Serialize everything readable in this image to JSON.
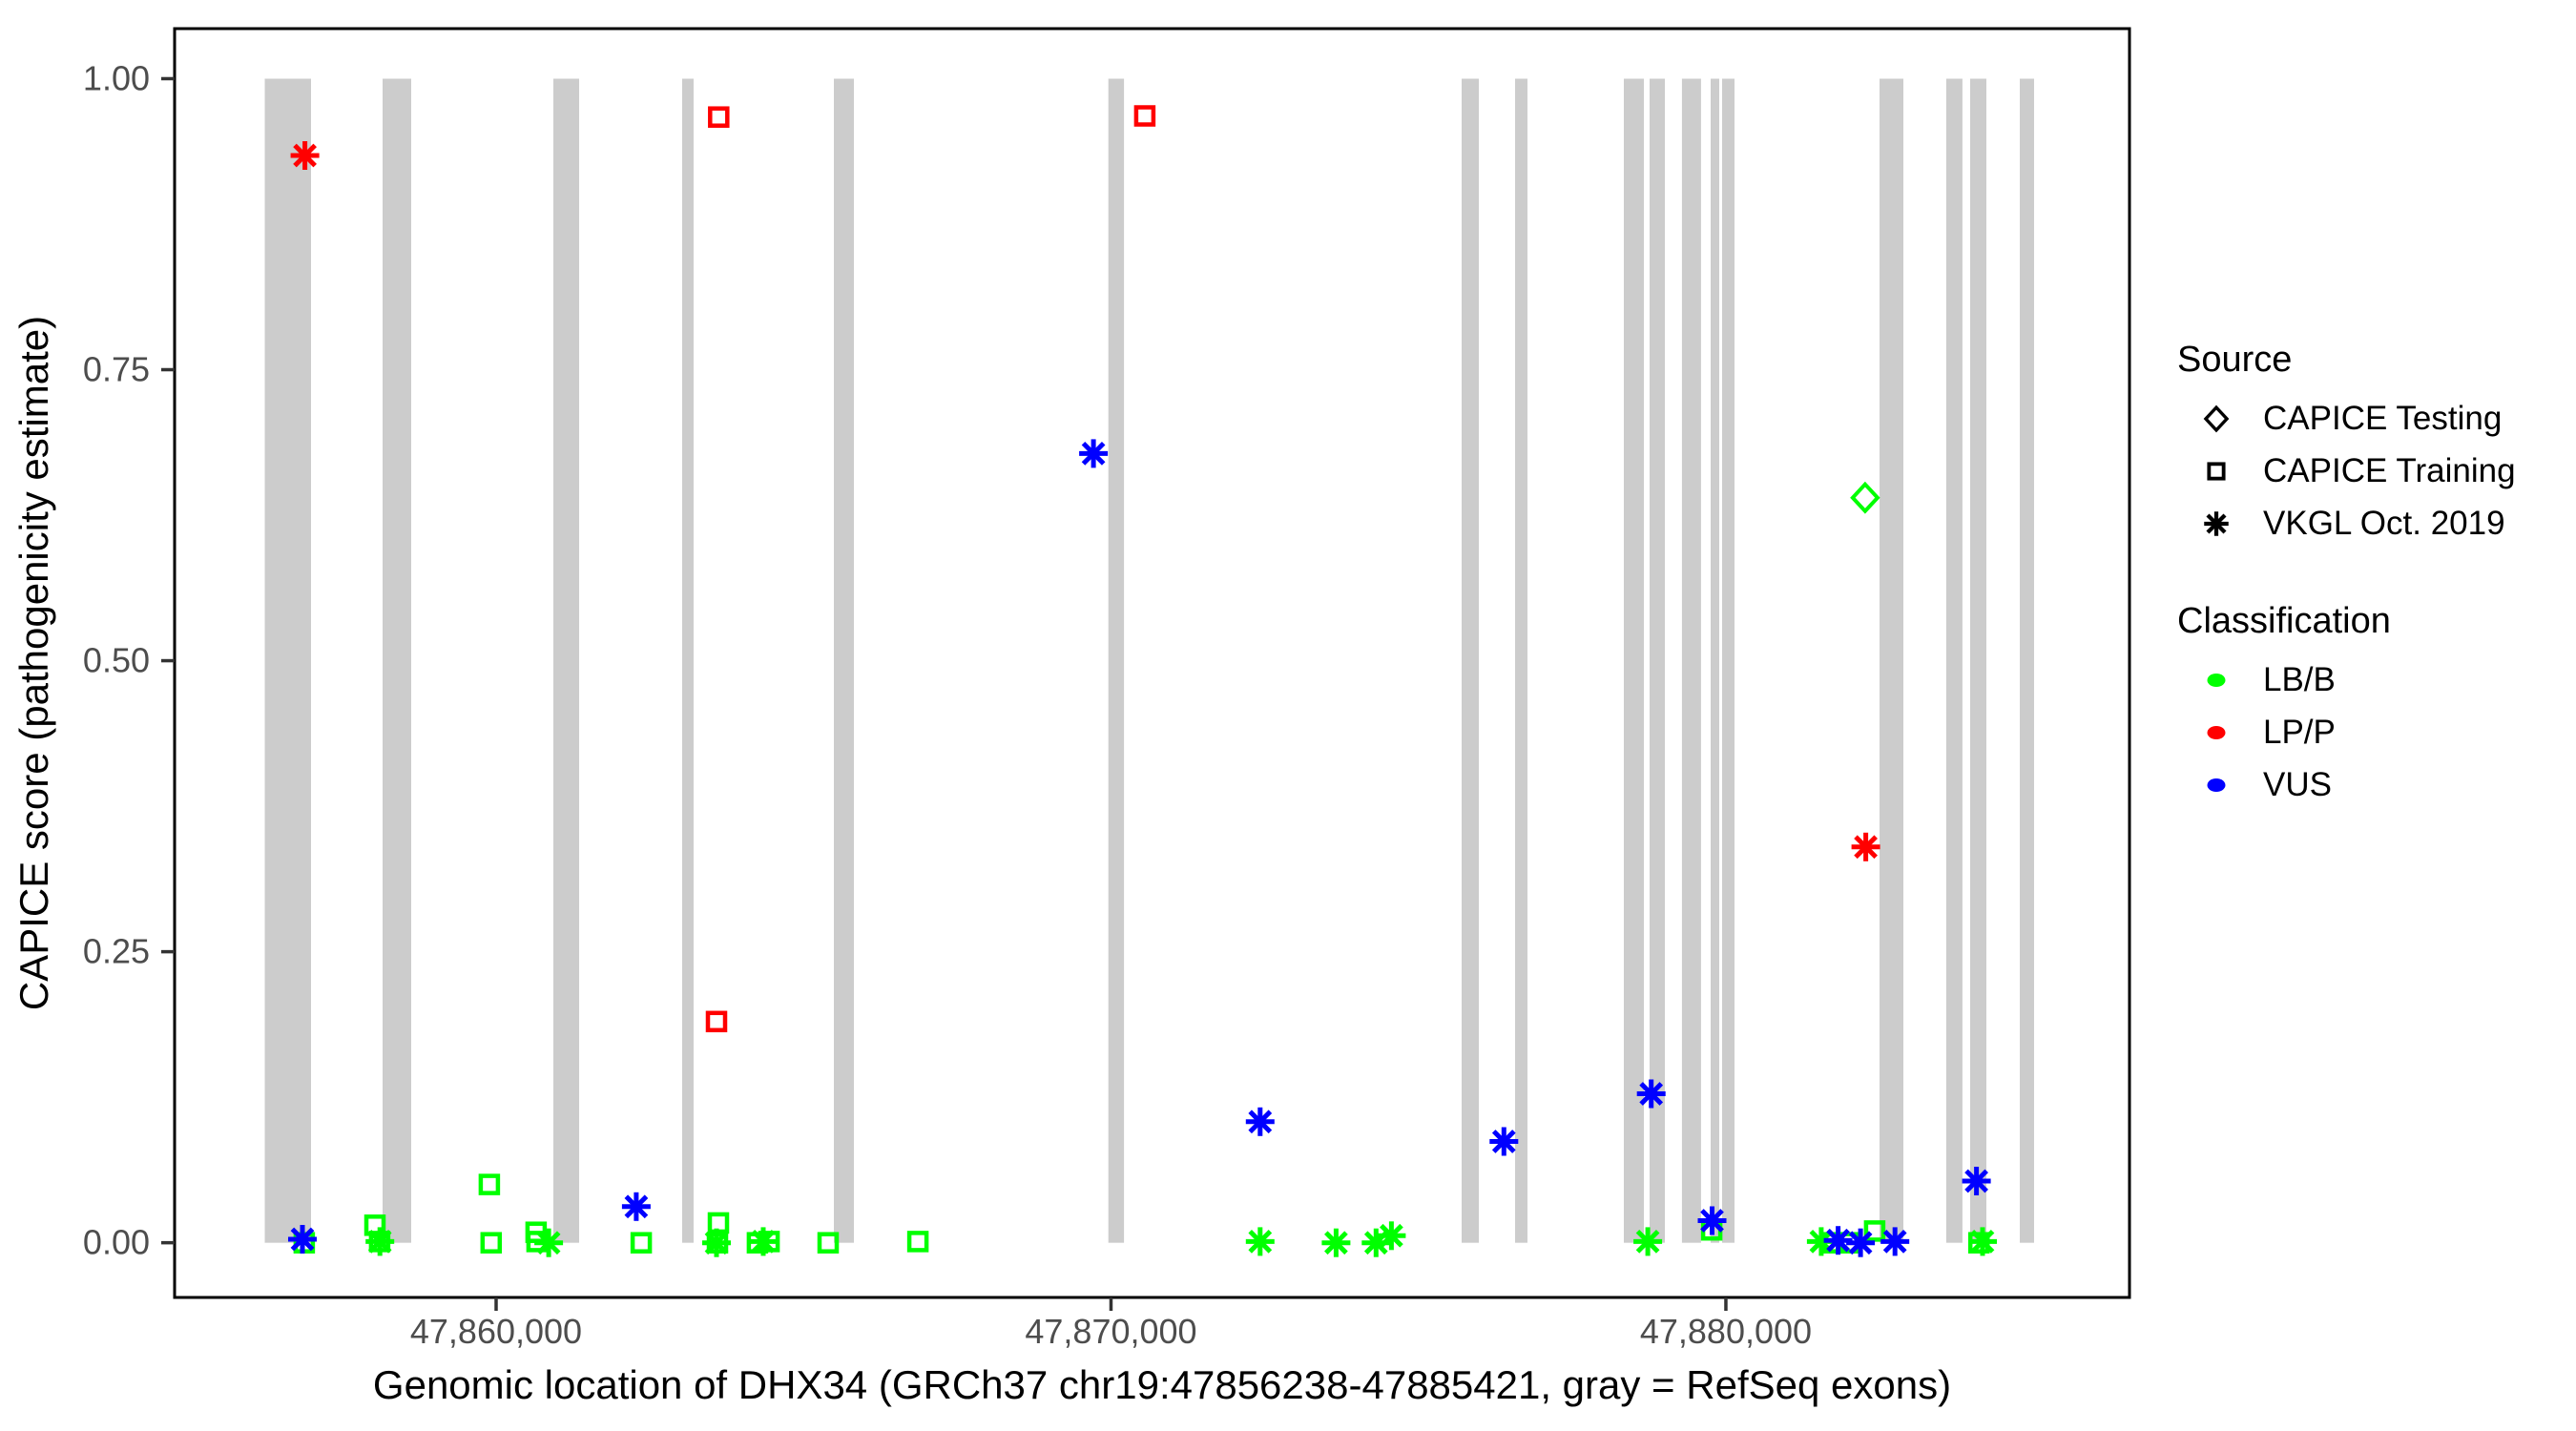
{
  "chart_data": {
    "type": "scatter",
    "title": "",
    "xlabel": "Genomic location of DHX34 (GRCh37 chr19:47856238-47885421, gray = RefSeq exons)",
    "ylabel": "CAPICE score (pathogenicity estimate)",
    "xlim": [
      47854771,
      47886564
    ],
    "ylim": [
      -0.047,
      1.043
    ],
    "grid": false,
    "legend_position": "right",
    "gene_region": {
      "gene": "DHX34",
      "assembly": "GRCh37",
      "chromosome": "chr19",
      "start": 47856238,
      "end": 47885421,
      "exon_note": "gray = RefSeq exons"
    },
    "x_ticks": [
      {
        "value": 47860000,
        "label": "47,860,000"
      },
      {
        "value": 47870000,
        "label": "47,870,000"
      },
      {
        "value": 47880000,
        "label": "47,880,000"
      }
    ],
    "y_ticks": [
      {
        "value": 0.0,
        "label": "0.00"
      },
      {
        "value": 0.25,
        "label": "0.25"
      },
      {
        "value": 0.5,
        "label": "0.50"
      },
      {
        "value": 0.75,
        "label": "0.75"
      },
      {
        "value": 1.0,
        "label": "1.00"
      }
    ],
    "exons": [
      [
        47856238,
        47856990
      ],
      [
        47858154,
        47858619
      ],
      [
        47860931,
        47861350
      ],
      [
        47863026,
        47863212
      ],
      [
        47865493,
        47865819
      ],
      [
        47869957,
        47870211
      ],
      [
        47875702,
        47875981
      ],
      [
        47876571,
        47876773
      ],
      [
        47878340,
        47878666
      ],
      [
        47878759,
        47879007
      ],
      [
        47879286,
        47879597
      ],
      [
        47879752,
        47879891
      ],
      [
        47879938,
        47880139
      ],
      [
        47882498,
        47882886
      ],
      [
        47883584,
        47883848
      ],
      [
        47883972,
        47884236
      ],
      [
        47884779,
        47885012
      ]
    ],
    "classification_colors": {
      "LB/B": "#00FF00",
      "LP/P": "#FF0000",
      "VUS": "#0000FF"
    },
    "series": [
      {
        "name": "CAPICE Testing",
        "marker": "diamond",
        "points": [
          {
            "x": 47882265,
            "y": 0.64,
            "classification": "LB/B"
          }
        ]
      },
      {
        "name": "CAPICE Training",
        "marker": "square",
        "points": [
          {
            "x": 47856880,
            "y": 0.0,
            "classification": "LB/B"
          },
          {
            "x": 47858030,
            "y": 0.015,
            "classification": "LB/B"
          },
          {
            "x": 47858105,
            "y": 0.001,
            "classification": "LB/B"
          },
          {
            "x": 47859890,
            "y": 0.05,
            "classification": "LB/B"
          },
          {
            "x": 47859920,
            "y": 0.0,
            "classification": "LB/B"
          },
          {
            "x": 47860650,
            "y": 0.009,
            "classification": "LB/B"
          },
          {
            "x": 47860665,
            "y": 0.001,
            "classification": "LB/B"
          },
          {
            "x": 47862360,
            "y": 0.0,
            "classification": "LB/B"
          },
          {
            "x": 47863585,
            "y": 0.19,
            "classification": "LP/P"
          },
          {
            "x": 47863600,
            "y": 0.0,
            "classification": "LB/B"
          },
          {
            "x": 47863615,
            "y": 0.017,
            "classification": "LB/B"
          },
          {
            "x": 47863620,
            "y": 0.967,
            "classification": "LP/P"
          },
          {
            "x": 47864250,
            "y": 0.0,
            "classification": "LB/B"
          },
          {
            "x": 47864440,
            "y": 0.001,
            "classification": "LB/B"
          },
          {
            "x": 47865400,
            "y": 0.0,
            "classification": "LB/B"
          },
          {
            "x": 47866860,
            "y": 0.001,
            "classification": "LB/B"
          },
          {
            "x": 47870550,
            "y": 0.968,
            "classification": "LP/P"
          },
          {
            "x": 47879770,
            "y": 0.011,
            "classification": "LB/B"
          },
          {
            "x": 47881750,
            "y": 0.0,
            "classification": "LB/B"
          },
          {
            "x": 47881990,
            "y": 0.0,
            "classification": "LB/B"
          },
          {
            "x": 47882420,
            "y": 0.01,
            "classification": "LB/B"
          },
          {
            "x": 47884115,
            "y": 0.0,
            "classification": "LB/B"
          }
        ]
      },
      {
        "name": "VKGL Oct. 2019",
        "marker": "asterisk",
        "points": [
          {
            "x": 47856850,
            "y": 0.003,
            "classification": "VUS"
          },
          {
            "x": 47856890,
            "y": 0.934,
            "classification": "LP/P"
          },
          {
            "x": 47858110,
            "y": 0.001,
            "classification": "LB/B"
          },
          {
            "x": 47860855,
            "y": 0.0,
            "classification": "LB/B"
          },
          {
            "x": 47862280,
            "y": 0.031,
            "classification": "VUS"
          },
          {
            "x": 47863585,
            "y": 0.0,
            "classification": "LB/B"
          },
          {
            "x": 47864345,
            "y": 0.001,
            "classification": "LB/B"
          },
          {
            "x": 47869715,
            "y": 0.678,
            "classification": "VUS"
          },
          {
            "x": 47872425,
            "y": 0.104,
            "classification": "VUS"
          },
          {
            "x": 47872425,
            "y": 0.001,
            "classification": "LB/B"
          },
          {
            "x": 47873660,
            "y": 0.0,
            "classification": "LB/B"
          },
          {
            "x": 47874310,
            "y": 0.0,
            "classification": "LB/B"
          },
          {
            "x": 47874560,
            "y": 0.006,
            "classification": "LB/B"
          },
          {
            "x": 47876390,
            "y": 0.087,
            "classification": "VUS"
          },
          {
            "x": 47878730,
            "y": 0.001,
            "classification": "LB/B"
          },
          {
            "x": 47878785,
            "y": 0.128,
            "classification": "VUS"
          },
          {
            "x": 47879775,
            "y": 0.019,
            "classification": "VUS"
          },
          {
            "x": 47881550,
            "y": 0.001,
            "classification": "LB/B"
          },
          {
            "x": 47881825,
            "y": 0.002,
            "classification": "VUS"
          },
          {
            "x": 47882190,
            "y": 0.0,
            "classification": "VUS"
          },
          {
            "x": 47882275,
            "y": 0.34,
            "classification": "LP/P"
          },
          {
            "x": 47882750,
            "y": 0.001,
            "classification": "VUS"
          },
          {
            "x": 47884075,
            "y": 0.053,
            "classification": "VUS"
          },
          {
            "x": 47884175,
            "y": 0.001,
            "classification": "LB/B"
          }
        ]
      }
    ]
  },
  "legend": {
    "source": {
      "title": "Source",
      "items": [
        {
          "label": "CAPICE Testing",
          "marker": "diamond"
        },
        {
          "label": "CAPICE Training",
          "marker": "square"
        },
        {
          "label": "VKGL Oct. 2019",
          "marker": "asterisk"
        }
      ]
    },
    "classification": {
      "title": "Classification",
      "items": [
        {
          "label": "LB/B",
          "color": "#00FF00"
        },
        {
          "label": "LP/P",
          "color": "#FF0000"
        },
        {
          "label": "VUS",
          "color": "#0000FF"
        }
      ]
    }
  },
  "colors": {
    "exon_bar": "#CCCCCC",
    "panel_border": "#000000",
    "tick_mark": "#333333",
    "tick_label": "#4D4D4D",
    "lb_b": "#00FF00",
    "lp_p": "#FF0000",
    "vus": "#0000FF"
  }
}
